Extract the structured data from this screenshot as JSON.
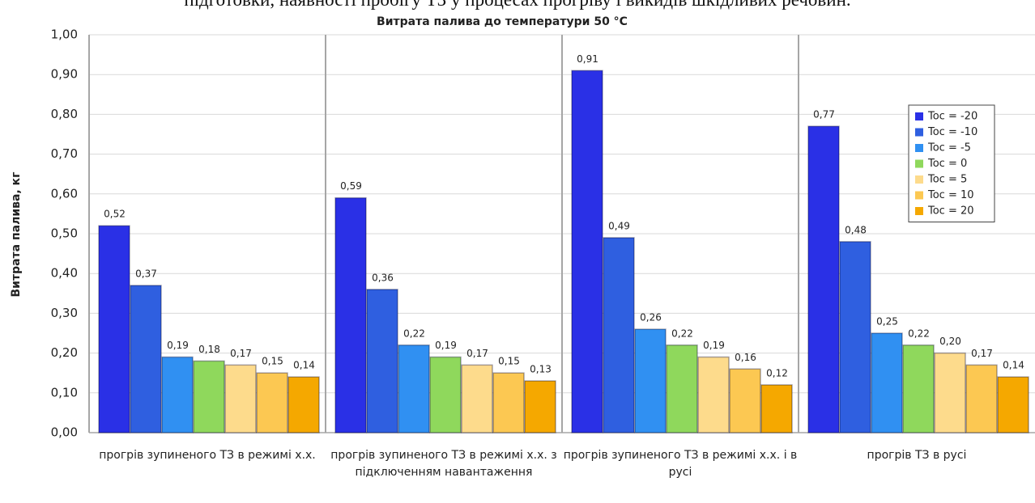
{
  "text_above": "підготовки, наявності пробігу ТЗ у процесах прогріву і викидів шкідливих речовин.",
  "chart_data": {
    "type": "bar",
    "title": "Витрата палива до температури 50 °С",
    "y_label": "Витрата палива, кг",
    "categories": [
      "прогрів зупиненого ТЗ в режимі х.х.",
      "прогрів зупиненого ТЗ в режимі х.х. з підключенням навантаження",
      "прогрів зупиненого ТЗ в режимі х.х. і в русі",
      "прогрів ТЗ в русі"
    ],
    "series": [
      {
        "name": "Toc = -20",
        "color": "#2a30e6",
        "values": [
          0.52,
          0.59,
          0.91,
          0.77
        ],
        "value_labels": [
          "0,52",
          "0,59",
          "0,91",
          "0,77"
        ]
      },
      {
        "name": "Toc = -10",
        "color": "#2f5fe0",
        "values": [
          0.37,
          0.36,
          0.49,
          0.48
        ],
        "value_labels": [
          "0,37",
          "0,36",
          "0,49",
          "0,48"
        ]
      },
      {
        "name": "Toc = -5",
        "color": "#3090f2",
        "values": [
          0.19,
          0.22,
          0.26,
          0.25
        ],
        "value_labels": [
          "0,19",
          "0,22",
          "0,26",
          "0,25"
        ]
      },
      {
        "name": "Toc = 0",
        "color": "#8fd85c",
        "values": [
          0.18,
          0.19,
          0.22,
          0.22
        ],
        "value_labels": [
          "0,18",
          "0,19",
          "0,22",
          "0,22"
        ]
      },
      {
        "name": "Toc = 5",
        "color": "#fddb8c",
        "values": [
          0.17,
          0.17,
          0.19,
          0.2
        ],
        "value_labels": [
          "0,17",
          "0,17",
          "0,19",
          "0,20"
        ]
      },
      {
        "name": "Toc = 10",
        "color": "#fcc852",
        "values": [
          0.15,
          0.15,
          0.16,
          0.17
        ],
        "value_labels": [
          "0,15",
          "0,15",
          "0,16",
          "0,17"
        ]
      },
      {
        "name": "Toc = 20",
        "color": "#f5a800",
        "values": [
          0.14,
          0.13,
          0.12,
          0.14
        ],
        "value_labels": [
          "0,14",
          "0,13",
          "0,12",
          "0,14"
        ]
      }
    ],
    "ylim": [
      0,
      1
    ],
    "yticks": [
      {
        "value": 0,
        "label": "0,00"
      },
      {
        "value": 0.1,
        "label": "0,10"
      },
      {
        "value": 0.2,
        "label": "0,20"
      },
      {
        "value": 0.3,
        "label": "0,30"
      },
      {
        "value": 0.4,
        "label": "0,40"
      },
      {
        "value": 0.5,
        "label": "0,50"
      },
      {
        "value": 0.6,
        "label": "0,60"
      },
      {
        "value": 0.7,
        "label": "0,70"
      },
      {
        "value": 0.8,
        "label": "0,80"
      },
      {
        "value": 0.9,
        "label": "0,90"
      },
      {
        "value": 1,
        "label": "1,00"
      }
    ],
    "grid": true,
    "legend": "right"
  }
}
